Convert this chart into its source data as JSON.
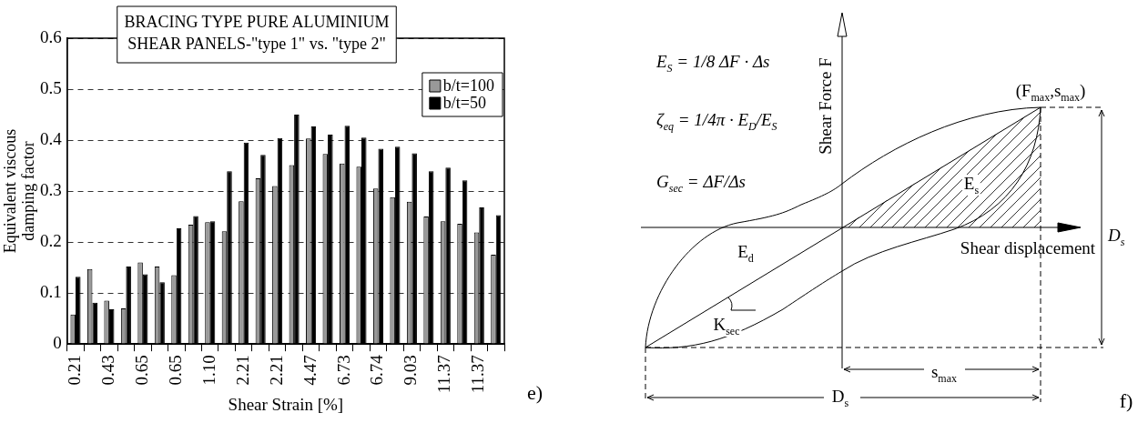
{
  "chart_data": [
    {
      "type": "bar",
      "title": "BRACING TYPE PURE ALUMINIUM SHEAR PANELS-\"type 1\" vs. \"type 2\"",
      "xlabel": "Shear Strain [%]",
      "ylabel": "Equivalent viscous damping factor",
      "categories": [
        "0.21",
        null,
        "0.43",
        null,
        "0.65",
        null,
        "0.65",
        null,
        "1.10",
        null,
        "2.21",
        null,
        "2.21",
        null,
        "4.47",
        null,
        "6.73",
        null,
        "6.74",
        null,
        "9.03",
        null,
        "11.37",
        null,
        "11.37",
        null
      ],
      "series": [
        {
          "name": "b/t=100",
          "color": "#999999",
          "values": [
            0.058,
            0.147,
            0.085,
            0.07,
            0.16,
            0.152,
            0.135,
            0.234,
            0.239,
            0.221,
            0.28,
            0.325,
            0.31,
            0.351,
            0.403,
            0.373,
            0.354,
            0.348,
            0.305,
            0.288,
            0.279,
            0.25,
            0.241,
            0.236,
            0.219,
            0.175
          ]
        },
        {
          "name": "b/t=50",
          "color": "#000000",
          "values": [
            0.132,
            0.081,
            0.068,
            0.152,
            0.137,
            0.121,
            0.227,
            0.251,
            0.241,
            0.339,
            0.395,
            0.371,
            0.404,
            0.45,
            0.427,
            0.411,
            0.428,
            0.405,
            0.383,
            0.387,
            0.374,
            0.339,
            0.346,
            0.321,
            0.268,
            0.253
          ]
        }
      ],
      "ylim": [
        0,
        0.6
      ],
      "yticks": [
        0,
        0.1,
        0.2,
        0.3,
        0.4,
        0.5,
        0.6
      ],
      "grid": "y",
      "line_style": "dashed",
      "legend": "top right",
      "annotations": [
        "e)"
      ]
    },
    {
      "type": "other",
      "annotations": [
        "E$_{S}$ = 1/8 ΔF · Δs",
        "ζ$_{eq}$ = 1/4π · E$_{D}$/E$_{S}$",
        "G$_{sec}$ = ΔF/Δs",
        "Shear Force F",
        "(F$_{max}$,s$_{max}$)",
        "E$_{s}$",
        "D$_{s}$",
        "Shear displacement",
        "E$_{d}$",
        "K$_{sec}$",
        "s$_{max}$",
        "D$_{s}$",
        "f)"
      ]
    }
  ]
}
